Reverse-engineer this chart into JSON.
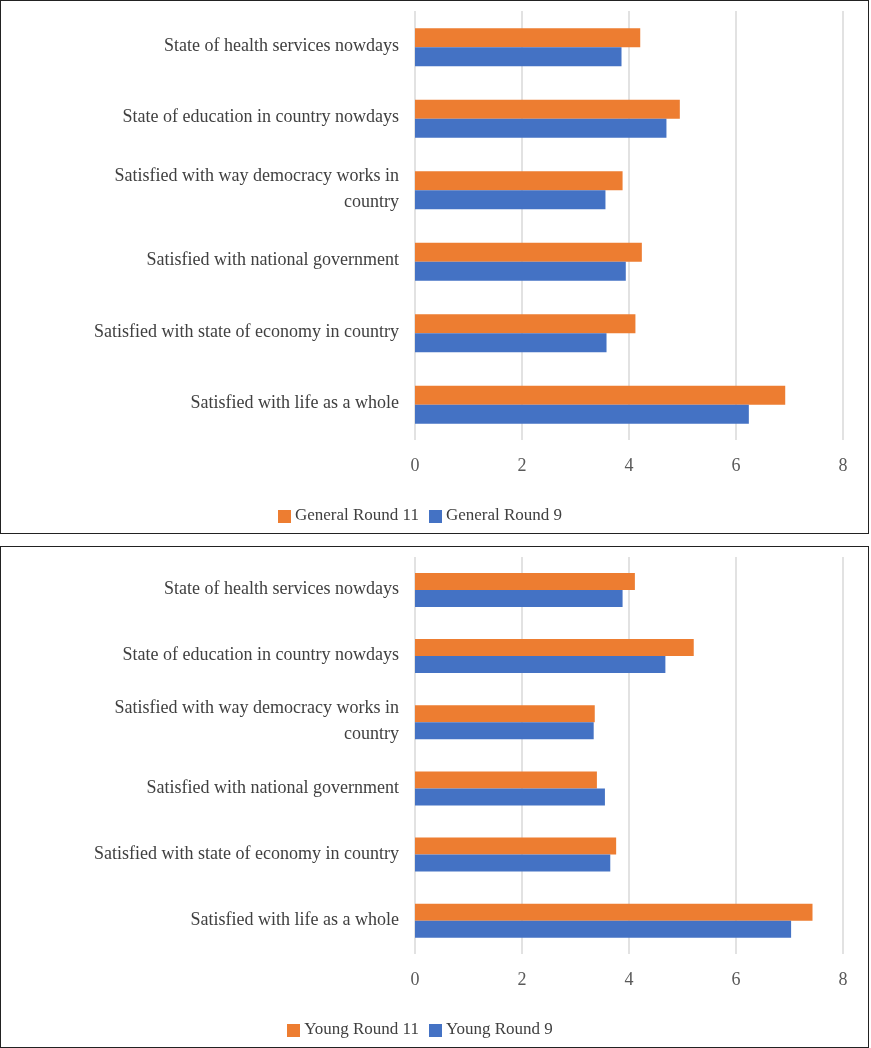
{
  "chart_data": [
    {
      "type": "bar",
      "orientation": "horizontal",
      "categories": [
        "State of health services nowdays",
        "State of education in country nowdays",
        "Satisfied with way democracy works in country",
        "Satisfied with national government",
        "Satisfied with state of economy in country",
        "Satisfied with life as a whole"
      ],
      "series": [
        {
          "name": "General Round 11",
          "color": "#ed7d31",
          "values": [
            4.21,
            4.95,
            3.88,
            4.24,
            4.12,
            6.92
          ]
        },
        {
          "name": "General Round 9",
          "color": "#4472c4",
          "values": [
            3.86,
            4.7,
            3.56,
            3.94,
            3.58,
            6.24
          ]
        }
      ],
      "xlim": [
        0,
        8
      ],
      "xticks": [
        0,
        2,
        4,
        6,
        8
      ],
      "grid": "x",
      "legend": "bottom"
    },
    {
      "type": "bar",
      "orientation": "horizontal",
      "categories": [
        "State of health services nowdays",
        "State of education in country nowdays",
        "Satisfied with way democracy works in country",
        "Satisfied with national government",
        "Satisfied with state of economy in country",
        "Satisfied with life as a whole"
      ],
      "series": [
        {
          "name": "Young Round 11",
          "color": "#ed7d31",
          "values": [
            4.11,
            5.21,
            3.36,
            3.4,
            3.76,
            7.43
          ]
        },
        {
          "name": "Young Round 9",
          "color": "#4472c4",
          "values": [
            3.88,
            4.68,
            3.34,
            3.55,
            3.65,
            7.03
          ]
        }
      ],
      "xlim": [
        0,
        8
      ],
      "xticks": [
        0,
        2,
        4,
        6,
        8
      ],
      "grid": "x",
      "legend": "bottom"
    }
  ]
}
